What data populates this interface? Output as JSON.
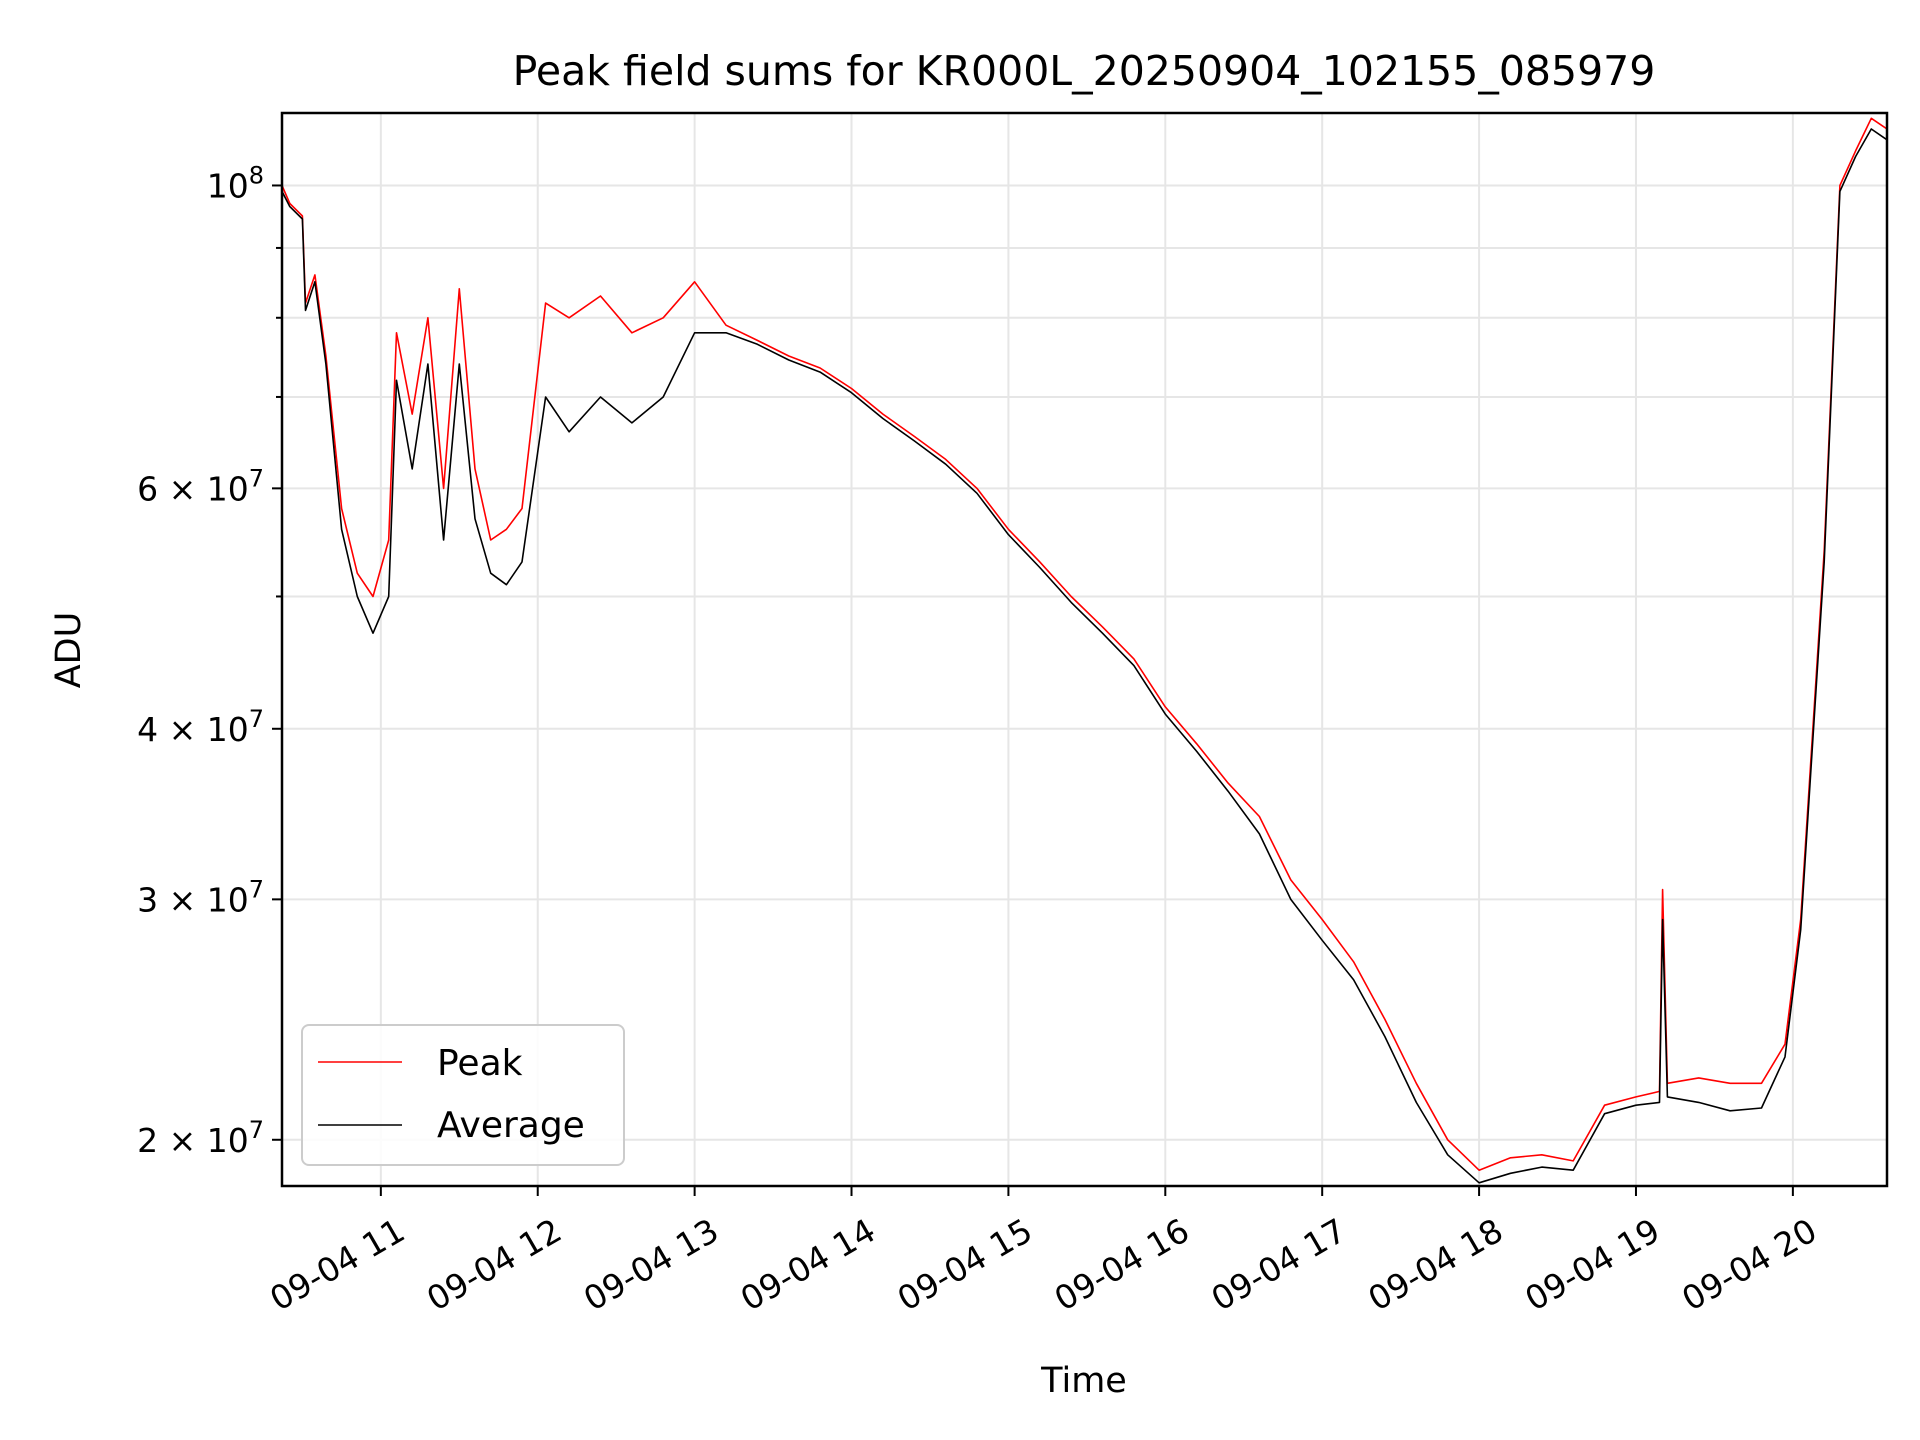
{
  "chart_data": {
    "type": "line",
    "title": "Peak field sums for KR000L_20250904_102155_085979",
    "xlabel": "Time",
    "ylabel": "ADU",
    "yscale": "log",
    "ylim": [
      18500000,
      113000000
    ],
    "xlim_hours": [
      10.37,
      20.6
    ],
    "grid": true,
    "legend_position": "lower-left",
    "x_tick_labels": [
      "09-04 11",
      "09-04 12",
      "09-04 13",
      "09-04 14",
      "09-04 15",
      "09-04 16",
      "09-04 17",
      "09-04 18",
      "09-04 19",
      "09-04 20"
    ],
    "x_tick_hours": [
      11,
      12,
      13,
      14,
      15,
      16,
      17,
      18,
      19,
      20
    ],
    "y_major_ticks": [
      {
        "value": 20000000,
        "mantissa": "2",
        "exponent": "7"
      },
      {
        "value": 30000000,
        "mantissa": "3",
        "exponent": "7"
      },
      {
        "value": 40000000,
        "mantissa": "4",
        "exponent": "7"
      },
      {
        "value": 60000000,
        "mantissa": "6",
        "exponent": "7"
      },
      {
        "value": 100000000,
        "mantissa": "",
        "exponent": "8"
      }
    ],
    "y_minor_ticks": [
      50000000,
      70000000,
      80000000,
      90000000
    ],
    "y_tick_base": "10",
    "series": [
      {
        "name": "Peak",
        "color": "#ff0000",
        "x_hours": [
          10.37,
          10.42,
          10.5,
          10.52,
          10.58,
          10.65,
          10.75,
          10.85,
          10.95,
          11.05,
          11.1,
          11.2,
          11.3,
          11.4,
          11.5,
          11.6,
          11.7,
          11.8,
          11.9,
          12.05,
          12.2,
          12.4,
          12.6,
          12.8,
          13.0,
          13.2,
          13.4,
          13.6,
          13.8,
          14.0,
          14.2,
          14.4,
          14.6,
          14.8,
          15.0,
          15.2,
          15.4,
          15.6,
          15.8,
          16.0,
          16.2,
          16.4,
          16.6,
          16.8,
          17.0,
          17.2,
          17.4,
          17.6,
          17.8,
          18.0,
          18.2,
          18.4,
          18.6,
          18.8,
          19.0,
          19.15,
          19.17,
          19.2,
          19.4,
          19.6,
          19.8,
          19.95,
          20.05,
          20.2,
          20.3,
          20.4,
          20.5,
          20.6
        ],
        "values": [
          100000000,
          97000000,
          95000000,
          82000000,
          86000000,
          75000000,
          58000000,
          52000000,
          50000000,
          55000000,
          78000000,
          68000000,
          80000000,
          60000000,
          84000000,
          62000000,
          55000000,
          56000000,
          58000000,
          82000000,
          80000000,
          83000000,
          78000000,
          80000000,
          85000000,
          79000000,
          77000000,
          75000000,
          73500000,
          71000000,
          68000000,
          65500000,
          63000000,
          60000000,
          56000000,
          53000000,
          50000000,
          47500000,
          45000000,
          41500000,
          39000000,
          36500000,
          34500000,
          31000000,
          29000000,
          27000000,
          24500000,
          22000000,
          20000000,
          19000000,
          19400000,
          19500000,
          19300000,
          21200000,
          21500000,
          21700000,
          30500000,
          22000000,
          22200000,
          22000000,
          22000000,
          23500000,
          29000000,
          54000000,
          100000000,
          106000000,
          112000000,
          110000000
        ]
      },
      {
        "name": "Average",
        "color": "#000000",
        "x_hours": [
          10.37,
          10.42,
          10.5,
          10.52,
          10.58,
          10.65,
          10.75,
          10.85,
          10.95,
          11.05,
          11.1,
          11.2,
          11.3,
          11.4,
          11.5,
          11.6,
          11.7,
          11.8,
          11.9,
          12.05,
          12.2,
          12.4,
          12.6,
          12.8,
          13.0,
          13.2,
          13.4,
          13.6,
          13.8,
          14.0,
          14.2,
          14.4,
          14.6,
          14.8,
          15.0,
          15.2,
          15.4,
          15.6,
          15.8,
          16.0,
          16.2,
          16.4,
          16.6,
          16.8,
          17.0,
          17.2,
          17.4,
          17.6,
          17.8,
          18.0,
          18.2,
          18.4,
          18.6,
          18.8,
          19.0,
          19.15,
          19.17,
          19.2,
          19.4,
          19.6,
          19.8,
          19.95,
          20.05,
          20.2,
          20.3,
          20.4,
          20.5,
          20.6
        ],
        "values": [
          99000000,
          96500000,
          94500000,
          81000000,
          85000000,
          74000000,
          56000000,
          50000000,
          47000000,
          50000000,
          72000000,
          62000000,
          74000000,
          55000000,
          74000000,
          57000000,
          52000000,
          51000000,
          53000000,
          70000000,
          66000000,
          70000000,
          67000000,
          70000000,
          78000000,
          78000000,
          76500000,
          74500000,
          73000000,
          70500000,
          67500000,
          65000000,
          62500000,
          59500000,
          55500000,
          52500000,
          49500000,
          47000000,
          44500000,
          41000000,
          38500000,
          36000000,
          33500000,
          30000000,
          28000000,
          26200000,
          23800000,
          21300000,
          19500000,
          18600000,
          18900000,
          19100000,
          19000000,
          20900000,
          21200000,
          21300000,
          29000000,
          21500000,
          21300000,
          21000000,
          21100000,
          23000000,
          28500000,
          53000000,
          99000000,
          105000000,
          110000000,
          108000000
        ]
      }
    ]
  }
}
